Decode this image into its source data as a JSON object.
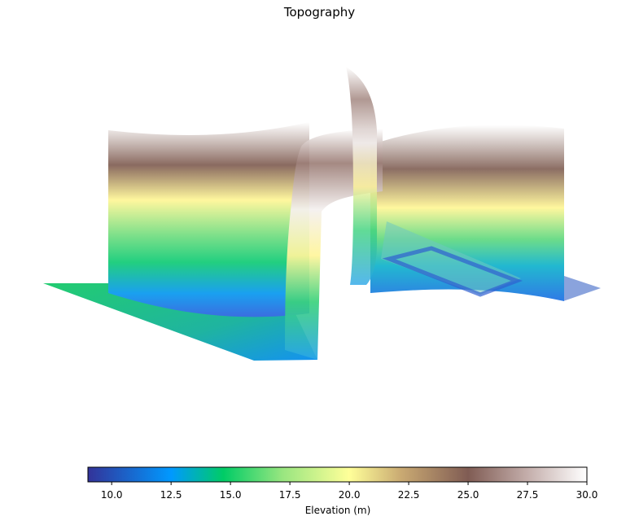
{
  "chart_data": {
    "type": "surface3d",
    "title": "Topography",
    "colorbar": {
      "label": "Elevation (m)",
      "min": 9.0,
      "max": 30.0,
      "ticks": [
        "10.0",
        "12.5",
        "15.0",
        "17.5",
        "20.0",
        "22.5",
        "25.0",
        "27.5",
        "30.0"
      ],
      "tick_values": [
        10.0,
        12.5,
        15.0,
        17.5,
        20.0,
        22.5,
        25.0,
        27.5,
        30.0
      ],
      "colormap": "terrain",
      "colormap_stops": [
        {
          "v": 9.0,
          "color": "#333399"
        },
        {
          "v": 12.5,
          "color": "#0099ff"
        },
        {
          "v": 14.7,
          "color": "#00cc66"
        },
        {
          "v": 17.2,
          "color": "#99e680"
        },
        {
          "v": 20.0,
          "color": "#ffff99"
        },
        {
          "v": 22.2,
          "color": "#c9a972"
        },
        {
          "v": 25.0,
          "color": "#805c54"
        },
        {
          "v": 27.5,
          "color": "#c4aeab"
        },
        {
          "v": 30.0,
          "color": "#ffffff"
        }
      ]
    }
  }
}
